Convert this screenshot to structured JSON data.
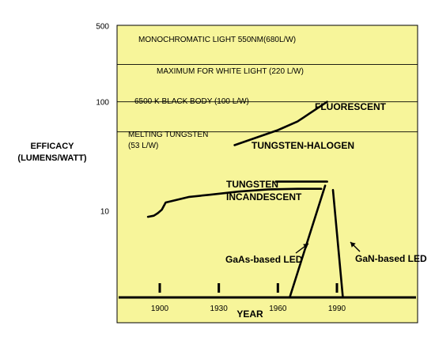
{
  "chart_data": {
    "type": "line",
    "ylabel": [
      "EFFICACY",
      "(LUMENS/WATT)"
    ],
    "xlabel": "YEAR",
    "y_scale": "log",
    "ylim": [
      1.6,
      500
    ],
    "xlim": [
      1880,
      2008
    ],
    "background": "#f7f59a",
    "y_ticks": [
      {
        "value": 500,
        "label": "500"
      },
      {
        "value": 100,
        "label": "100"
      },
      {
        "value": 10,
        "label": "10"
      }
    ],
    "x_ticks": [
      {
        "value": 1900,
        "label": "1900"
      },
      {
        "value": 1930,
        "label": "1930"
      },
      {
        "value": 1960,
        "label": "1960"
      },
      {
        "value": 1990,
        "label": "1990"
      }
    ],
    "reference_lines": [
      {
        "value": 680,
        "label": "MONOCHROMATIC LIGHT 550NM(680L/W)"
      },
      {
        "value": 220,
        "label": "MAXIMUM FOR WHITE LIGHT (220 L/W)"
      },
      {
        "value": 100,
        "label": "6500 K BLACK BODY (100 L/W)"
      },
      {
        "value": 53,
        "label_lines": [
          "MELTING TUNGSTEN",
          "(53 L/W)"
        ]
      }
    ],
    "series": [
      {
        "name": "TUNGSTEN INCANDESCENT",
        "label_lines": [
          "TUNGSTEN",
          "INCANDESCENT"
        ],
        "x": [
          1894,
          1897,
          1899,
          1901,
          1903,
          1915,
          1925,
          1940,
          1955,
          1970,
          1982
        ],
        "y": [
          8.8,
          9.0,
          9.5,
          10.2,
          11.9,
          13.4,
          14.0,
          15.0,
          15.7,
          15.9,
          15.9
        ]
      },
      {
        "name": "FLUORESCENT",
        "x": [
          1938,
          1960,
          1970,
          1976,
          1982,
          1985
        ],
        "y": [
          40,
          55,
          66,
          78,
          92,
          100
        ]
      },
      {
        "name": "TUNGSTEN-HALOGEN",
        "x": [
          1959,
          1985
        ],
        "y": [
          18.5,
          18.5
        ]
      },
      {
        "name": "GaAs-based LED",
        "x": [
          1966,
          1984
        ],
        "y": [
          1.6,
          17
        ]
      },
      {
        "name": "GaN-based LED",
        "x": [
          1993,
          1988
        ],
        "y": [
          1.6,
          15.5
        ]
      }
    ]
  }
}
